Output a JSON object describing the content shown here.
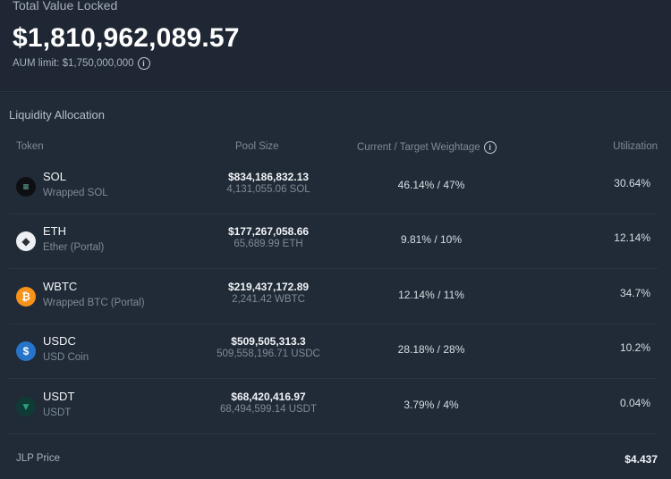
{
  "tvl": {
    "label": "Total Value Locked",
    "value": "$1,810,962,089.57",
    "aum_limit": "AUM limit: $1,750,000,000",
    "info_glyph": "i"
  },
  "allocation": {
    "title": "Liquidity Allocation",
    "headers": {
      "token": "Token",
      "pool_size": "Pool Size",
      "weightage": "Current / Target Weightage",
      "utilization": "Utilization"
    },
    "rows": [
      {
        "symbol": "SOL",
        "name": "Wrapped SOL",
        "pool_usd": "$834,186,832.13",
        "pool_amount": "4,131,055.06 SOL",
        "weightage": "46.14% / 47%",
        "utilization": "30.64%",
        "icon": "sol-icon",
        "icon_glyph": "≡",
        "icon_bg": "#0e0f13",
        "icon_fg": "#7de3c4"
      },
      {
        "symbol": "ETH",
        "name": "Ether (Portal)",
        "pool_usd": "$177,267,058.66",
        "pool_amount": "65,689.99 ETH",
        "weightage": "9.81% / 10%",
        "utilization": "12.14%",
        "icon": "eth-icon",
        "icon_glyph": "◆",
        "icon_bg": "#eceff3",
        "icon_fg": "#2b2f36"
      },
      {
        "symbol": "WBTC",
        "name": "Wrapped BTC (Portal)",
        "pool_usd": "$219,437,172.89",
        "pool_amount": "2,241.42 WBTC",
        "weightage": "12.14% / 11%",
        "utilization": "34.7%",
        "icon": "btc-icon",
        "icon_glyph": "₿",
        "icon_bg": "#f7931a",
        "icon_fg": "#ffffff"
      },
      {
        "symbol": "USDC",
        "name": "USD Coin",
        "pool_usd": "$509,505,313.3",
        "pool_amount": "509,558,196.71 USDC",
        "weightage": "28.18% / 28%",
        "utilization": "10.2%",
        "icon": "usdc-icon",
        "icon_glyph": "$",
        "icon_bg": "#2775ca",
        "icon_fg": "#ffffff"
      },
      {
        "symbol": "USDT",
        "name": "USDT",
        "pool_usd": "$68,420,416.97",
        "pool_amount": "68,494,599.14 USDT",
        "weightage": "3.79% / 4%",
        "utilization": "0.04%",
        "icon": "usdt-icon",
        "icon_glyph": "▼",
        "icon_bg": "#0f3a36",
        "icon_fg": "#26a17b"
      }
    ]
  },
  "jlp": {
    "label": "JLP Price",
    "value": "$4.437"
  }
}
